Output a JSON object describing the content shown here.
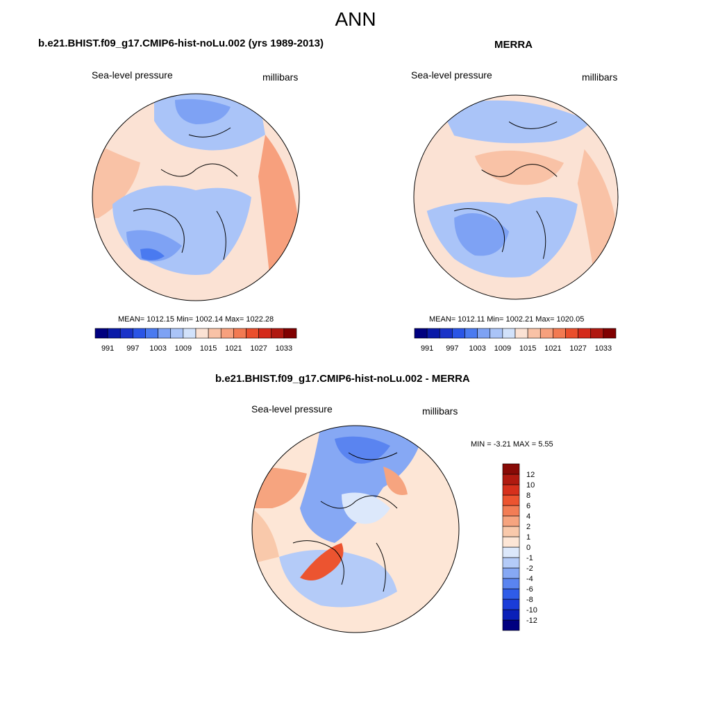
{
  "page_title": "ANN",
  "panels": [
    {
      "title": "b.e21.BHIST.f09_g17.CMIP6-hist-noLu.002 (yrs 1989-2013)",
      "left_label": "Sea-level pressure",
      "right_label": "millibars",
      "stats": "MEAN= 1012.15  Min= 1002.14  Max= 1022.28"
    },
    {
      "title": "MERRA",
      "left_label": "Sea-level pressure",
      "right_label": "millibars",
      "stats": "MEAN= 1012.11  Min= 1002.21  Max= 1020.05"
    },
    {
      "title": "b.e21.BHIST.f09_g17.CMIP6-hist-noLu.002 - MERRA",
      "left_label": "Sea-level pressure",
      "right_label": "millibars",
      "stats": "MIN =  -3.21 MAX =   5.55"
    }
  ],
  "colorbar_abs": {
    "colors": [
      "#00007f",
      "#0a1aa8",
      "#1a33c8",
      "#2a55e6",
      "#4a7af0",
      "#7ea2f4",
      "#aac4f8",
      "#d2e2fb",
      "#fbe2d4",
      "#f9c2a6",
      "#f7a07d",
      "#f27a52",
      "#ea4f2c",
      "#d42a1a",
      "#b01810",
      "#800000"
    ],
    "tick_labels": [
      "991",
      "997",
      "1003",
      "1009",
      "1015",
      "1021",
      "1027",
      "1033"
    ]
  },
  "colorbar_diff": {
    "colors": [
      "#000080",
      "#0a20b8",
      "#1a3cd8",
      "#2f5ce8",
      "#5a84f0",
      "#86a8f4",
      "#b4cbf8",
      "#dce8fb",
      "#fde6d6",
      "#f9c9ab",
      "#f6a47f",
      "#f27d55",
      "#ec5430",
      "#d6301c",
      "#b01a10",
      "#880a06"
    ],
    "tick_labels": [
      "-12",
      "-10",
      "-8",
      "-6",
      "-4",
      "-2",
      "-1",
      "0",
      "1",
      "2",
      "4",
      "6",
      "8",
      "10",
      "12"
    ]
  }
}
